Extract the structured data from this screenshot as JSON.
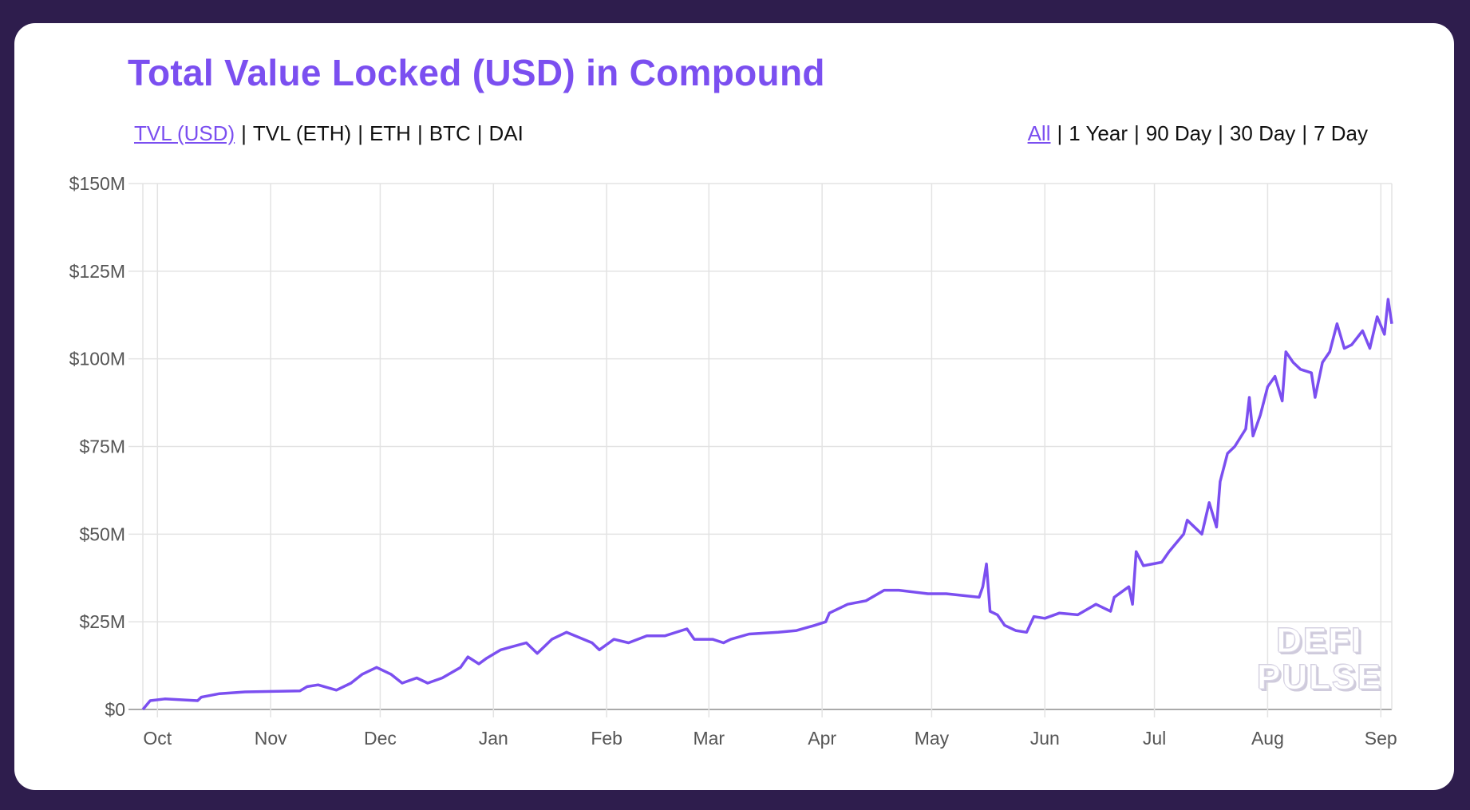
{
  "title": "Total Value Locked (USD) in Compound",
  "metric_tabs": [
    {
      "label": "TVL (USD)",
      "active": true
    },
    {
      "label": "TVL (ETH)",
      "active": false
    },
    {
      "label": "ETH",
      "active": false
    },
    {
      "label": "BTC",
      "active": false
    },
    {
      "label": "DAI",
      "active": false
    }
  ],
  "range_tabs": [
    {
      "label": "All",
      "active": true
    },
    {
      "label": "1 Year",
      "active": false
    },
    {
      "label": "90 Day",
      "active": false
    },
    {
      "label": "30 Day",
      "active": false
    },
    {
      "label": "7 Day",
      "active": false
    }
  ],
  "watermark": [
    "DEFI",
    "PULSE"
  ],
  "colors": {
    "line": "#7b4ff0",
    "accent": "#7b4ff0",
    "background": "#2e1d4d"
  },
  "chart_data": {
    "type": "line",
    "title": "Total Value Locked (USD) in Compound",
    "x_unit": "days since Oct 1",
    "y_unit": "USD millions",
    "xlim": [
      -4,
      338
    ],
    "ylim": [
      0,
      150
    ],
    "grid": true,
    "x_ticks": [
      {
        "label": "Oct",
        "x": 0
      },
      {
        "label": "Nov",
        "x": 31
      },
      {
        "label": "Dec",
        "x": 61
      },
      {
        "label": "Jan",
        "x": 92
      },
      {
        "label": "Feb",
        "x": 123
      },
      {
        "label": "Mar",
        "x": 151
      },
      {
        "label": "Apr",
        "x": 182
      },
      {
        "label": "May",
        "x": 212
      },
      {
        "label": "Jun",
        "x": 243
      },
      {
        "label": "Jul",
        "x": 273
      },
      {
        "label": "Aug",
        "x": 304
      },
      {
        "label": "Sep",
        "x": 335
      }
    ],
    "y_ticks": [
      {
        "label": "$0",
        "y": 0
      },
      {
        "label": "$25M",
        "y": 25
      },
      {
        "label": "$50M",
        "y": 50
      },
      {
        "label": "$75M",
        "y": 75
      },
      {
        "label": "$100M",
        "y": 100
      },
      {
        "label": "$125M",
        "y": 125
      },
      {
        "label": "$150M",
        "y": 150
      }
    ],
    "series": [
      {
        "name": "TVL (USD)",
        "x": [
          -4,
          -2,
          2,
          11,
          12,
          17,
          24,
          39,
          41,
          44,
          49,
          53,
          56,
          60,
          64,
          67,
          71,
          74,
          78,
          83,
          85,
          88,
          90,
          94,
          101,
          104,
          108,
          112,
          119,
          121,
          125,
          129,
          134,
          139,
          145,
          147,
          152,
          155,
          157,
          162,
          170,
          175,
          180,
          183,
          184,
          189,
          194,
          199,
          203,
          211,
          216,
          225,
          226,
          227,
          228,
          230,
          232,
          235,
          238,
          240,
          243,
          247,
          252,
          257,
          261,
          262,
          266,
          267,
          268,
          270,
          275,
          277,
          281,
          282,
          286,
          288,
          290,
          291,
          293,
          295,
          298,
          299,
          300,
          302,
          304,
          306,
          308,
          309,
          311,
          313,
          316,
          317,
          319,
          321,
          323,
          325,
          327,
          330,
          332,
          334,
          336,
          337,
          338
        ],
        "values": [
          0,
          2.5,
          3,
          2.5,
          3.5,
          4.5,
          5,
          5.3,
          6.5,
          7,
          5.5,
          7.5,
          10,
          12,
          10,
          7.5,
          9,
          7.5,
          9,
          12,
          15,
          13,
          14.5,
          17,
          19,
          16,
          20,
          22,
          19,
          17,
          20,
          19,
          21,
          21,
          23,
          20,
          20,
          19,
          20,
          21.5,
          22,
          22.5,
          24,
          25,
          27.5,
          30,
          31,
          34,
          34,
          33,
          33,
          32,
          35,
          41.5,
          28,
          27,
          24,
          22.5,
          22,
          26.5,
          26,
          27.5,
          27,
          30,
          28,
          32,
          35,
          30,
          45,
          41,
          42,
          45,
          50,
          54,
          50,
          59,
          52,
          65,
          73,
          75,
          80,
          89,
          78,
          84,
          92,
          95,
          88,
          102,
          99,
          97,
          96,
          89,
          99,
          102,
          110,
          103,
          104,
          108,
          103,
          112,
          107,
          117,
          110
        ]
      }
    ]
  }
}
